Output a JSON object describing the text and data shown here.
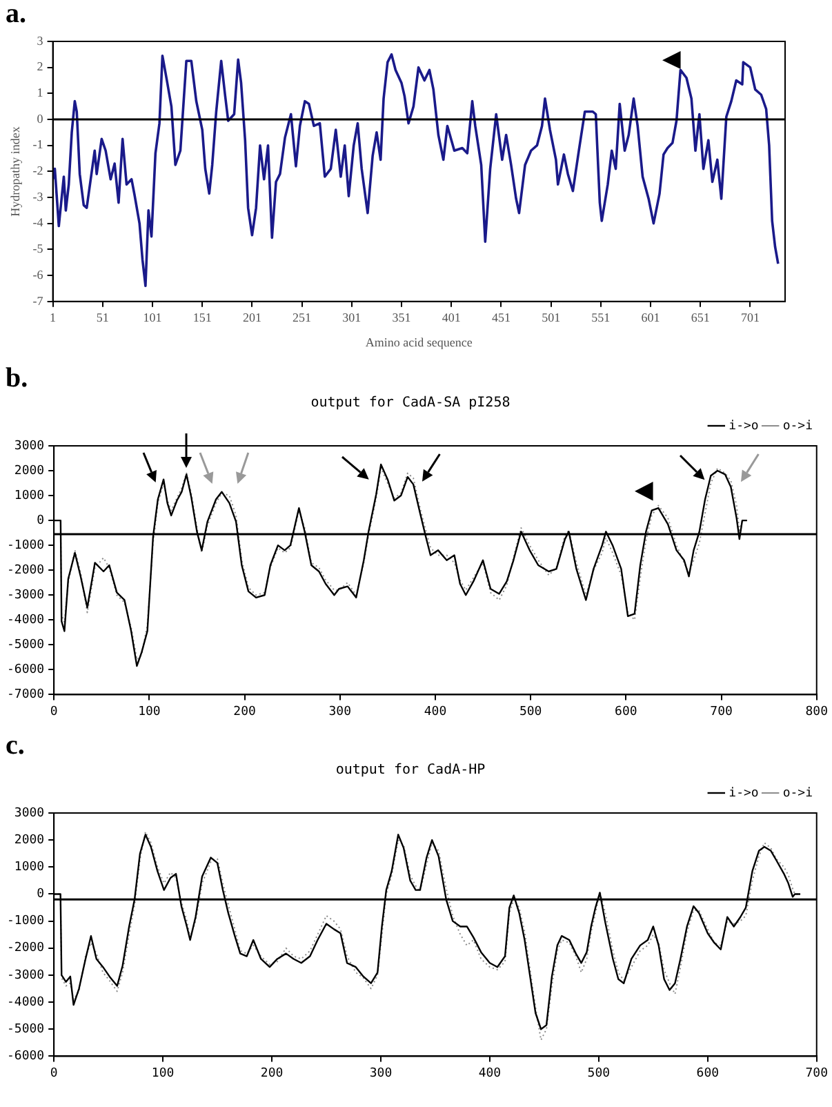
{
  "chart_data": [
    {
      "type": "line",
      "annotations": [
        "a."
      ],
      "xlabel": "Amino acid sequence",
      "ylabel": "Hydropathy index",
      "xlim": [
        1,
        736
      ],
      "xticks": [
        1,
        51,
        101,
        151,
        201,
        251,
        301,
        351,
        401,
        451,
        501,
        551,
        601,
        651,
        701
      ],
      "ylim": [
        -7,
        3
      ],
      "yticks": [
        -7,
        -6,
        -5,
        -4,
        -3,
        -2,
        -1,
        0,
        1,
        2,
        3
      ],
      "grid": false,
      "marker": "none",
      "line_style": "solid",
      "ref_lines": [
        {
          "axis": "y",
          "value": 0,
          "color": "#000000"
        }
      ],
      "series": [
        {
          "color": "#1a1a8a",
          "x": [
            1,
            3,
            7,
            12,
            14,
            17,
            20,
            23,
            25,
            28,
            32,
            35,
            39,
            43,
            45,
            50,
            54,
            59,
            63,
            67,
            71,
            75,
            80,
            83,
            88,
            91,
            94,
            97,
            100,
            104,
            108,
            111,
            115,
            120,
            124,
            129,
            135,
            140,
            145,
            151,
            154,
            158,
            161,
            165,
            170,
            174,
            177,
            183,
            187,
            190,
            194,
            197,
            201,
            205,
            209,
            213,
            217,
            221,
            225,
            229,
            234,
            240,
            245,
            249,
            254,
            258,
            263,
            269,
            274,
            280,
            285,
            290,
            294,
            298,
            303,
            307,
            311,
            317,
            322,
            326,
            330,
            333,
            337,
            341,
            345,
            351,
            354,
            358,
            363,
            368,
            374,
            379,
            383,
            388,
            393,
            397,
            404,
            412,
            417,
            422,
            425,
            431,
            435,
            440,
            446,
            452,
            456,
            461,
            466,
            469,
            475,
            481,
            487,
            492,
            495,
            500,
            506,
            508,
            514,
            518,
            523,
            529,
            535,
            543,
            546,
            550,
            552,
            558,
            562,
            566,
            570,
            575,
            579,
            584,
            588,
            593,
            599,
            604,
            610,
            614,
            618,
            623,
            627,
            631,
            637,
            642,
            646,
            650,
            654,
            659,
            663,
            668,
            672,
            677,
            682,
            687,
            693,
            694,
            701,
            706,
            712,
            717,
            720,
            723,
            726,
            729
          ],
          "values": [
            -2.3,
            -1.9,
            -4.1,
            -2.2,
            -3.5,
            -2.5,
            -0.5,
            0.7,
            0.3,
            -2.1,
            -3.3,
            -3.4,
            -2.3,
            -1.2,
            -2.1,
            -0.75,
            -1.2,
            -2.3,
            -1.7,
            -3.2,
            -0.75,
            -2.5,
            -2.3,
            -2.9,
            -4,
            -5.4,
            -6.4,
            -3.5,
            -4.5,
            -1.3,
            -0.15,
            2.45,
            1.6,
            0.5,
            -1.75,
            -1.2,
            2.25,
            2.25,
            0.7,
            -0.4,
            -1.9,
            -2.85,
            -1.75,
            0.3,
            2.25,
            0.9,
            -0.05,
            0.2,
            2.3,
            1.4,
            -0.8,
            -3.4,
            -4.45,
            -3.4,
            -1,
            -2.3,
            -1,
            -4.55,
            -2.4,
            -2.1,
            -0.7,
            0.2,
            -1.8,
            -0.25,
            0.7,
            0.6,
            -0.25,
            -0.15,
            -2.2,
            -1.9,
            -0.4,
            -2.2,
            -1,
            -2.95,
            -1,
            -0.15,
            -1.9,
            -3.6,
            -1.4,
            -0.5,
            -1.55,
            0.8,
            2.2,
            2.5,
            1.9,
            1.4,
            0.9,
            -0.15,
            0.5,
            2,
            1.5,
            1.9,
            1.15,
            -0.6,
            -1.55,
            -0.25,
            -1.2,
            -1.1,
            -1.3,
            0.7,
            -0.25,
            -1.75,
            -4.7,
            -1.9,
            0.2,
            -1.55,
            -0.6,
            -1.75,
            -3.05,
            -3.6,
            -1.75,
            -1.2,
            -1,
            -0.25,
            0.8,
            -0.4,
            -1.55,
            -2.5,
            -1.35,
            -2.1,
            -2.75,
            -1.2,
            0.3,
            0.3,
            0.2,
            -3.2,
            -3.9,
            -2.5,
            -1.2,
            -1.9,
            0.6,
            -1.2,
            -0.6,
            0.8,
            -0.25,
            -2.2,
            -3.05,
            -4,
            -2.85,
            -1.35,
            -1.1,
            -0.9,
            -0.05,
            1.9,
            1.6,
            0.8,
            -1.2,
            0.2,
            -1.9,
            -0.8,
            -2.4,
            -1.55,
            -3.05,
            0.1,
            0.7,
            1.5,
            1.35,
            2.2,
            2,
            1.15,
            0.95,
            0.4,
            -1,
            -3.9,
            -4.9,
            -5.55
          ]
        }
      ]
    },
    {
      "type": "line",
      "annotations": [
        "b."
      ],
      "title": "output for CadA-SA pI258",
      "xlim": [
        0,
        800
      ],
      "xticks": [
        0,
        100,
        200,
        300,
        400,
        500,
        600,
        700,
        800
      ],
      "ylim": [
        -7000,
        3000
      ],
      "yticks": [
        -7000,
        -6000,
        -5000,
        -4000,
        -3000,
        -2000,
        -1000,
        0,
        1000,
        2000,
        3000
      ],
      "grid": false,
      "legend": "top right",
      "marker": "none",
      "ref_lines": [
        {
          "axis": "y",
          "value": -550,
          "color": "#000000"
        }
      ],
      "series": [
        {
          "name": "i->o",
          "color": "#000000",
          "line_style": "solid",
          "x": [
            0,
            7,
            8,
            11,
            15,
            22,
            28,
            35,
            43,
            52,
            58,
            66,
            74,
            81,
            87,
            92,
            98,
            104,
            109,
            115,
            119,
            123,
            129,
            134,
            139,
            144,
            150,
            155,
            161,
            170,
            176,
            184,
            191,
            197,
            204,
            212,
            221,
            227,
            235,
            242,
            248,
            257,
            263,
            270,
            278,
            285,
            294,
            299,
            308,
            317,
            325,
            330,
            338,
            343,
            350,
            357,
            364,
            371,
            377,
            384,
            390,
            395,
            403,
            412,
            420,
            426,
            432,
            440,
            450,
            458,
            467,
            475,
            482,
            490,
            499,
            508,
            519,
            527,
            536,
            540,
            548,
            558,
            566,
            575,
            579,
            586,
            595,
            602,
            609,
            615,
            621,
            627,
            634,
            644,
            653,
            661,
            666,
            671,
            677,
            683,
            689,
            696,
            704,
            710,
            716,
            719,
            722,
            727
          ],
          "values": [
            0,
            0,
            -4050,
            -4450,
            -2350,
            -1300,
            -2250,
            -3500,
            -1700,
            -2050,
            -1800,
            -2900,
            -3200,
            -4450,
            -5850,
            -5300,
            -4450,
            -650,
            850,
            1650,
            700,
            200,
            800,
            1150,
            1850,
            950,
            -450,
            -1200,
            -50,
            850,
            1150,
            700,
            -50,
            -1800,
            -2850,
            -3100,
            -3000,
            -1800,
            -1000,
            -1200,
            -1000,
            500,
            -450,
            -1800,
            -2050,
            -2550,
            -3000,
            -2750,
            -2650,
            -3100,
            -1600,
            -450,
            1050,
            2250,
            1650,
            800,
            1000,
            1750,
            1450,
            300,
            -650,
            -1400,
            -1200,
            -1600,
            -1400,
            -2550,
            -3000,
            -2450,
            -1600,
            -2750,
            -2950,
            -2450,
            -1600,
            -450,
            -1200,
            -1800,
            -2050,
            -1950,
            -750,
            -450,
            -1950,
            -3200,
            -1950,
            -1000,
            -450,
            -1000,
            -1950,
            -3850,
            -3750,
            -1800,
            -450,
            400,
            500,
            -150,
            -1200,
            -1600,
            -2250,
            -1200,
            -450,
            850,
            1800,
            2000,
            1850,
            1350,
            100,
            -750,
            0,
            0
          ]
        },
        {
          "name": "o->i",
          "color": "#8c8c8c",
          "line_style": "dotted",
          "x": [
            0,
            7,
            8,
            11,
            15,
            22,
            28,
            35,
            43,
            52,
            58,
            66,
            74,
            81,
            87,
            92,
            98,
            104,
            109,
            115,
            119,
            123,
            129,
            134,
            139,
            144,
            150,
            155,
            161,
            170,
            176,
            184,
            191,
            197,
            204,
            212,
            221,
            227,
            235,
            242,
            248,
            257,
            263,
            270,
            278,
            285,
            294,
            299,
            308,
            317,
            325,
            330,
            338,
            343,
            350,
            357,
            364,
            371,
            377,
            384,
            390,
            395,
            403,
            412,
            420,
            426,
            432,
            440,
            450,
            458,
            467,
            475,
            482,
            490,
            499,
            508,
            519,
            527,
            536,
            540,
            548,
            558,
            566,
            575,
            579,
            586,
            595,
            602,
            609,
            615,
            621,
            627,
            634,
            644,
            653,
            661,
            666,
            671,
            677,
            683,
            689,
            696,
            704,
            710,
            716,
            719,
            722,
            727
          ],
          "values": [
            0,
            0,
            -3800,
            -4100,
            -2500,
            -1200,
            -2100,
            -3700,
            -1900,
            -1500,
            -1900,
            -3000,
            -3300,
            -4300,
            -5600,
            -5400,
            -4200,
            -900,
            700,
            1500,
            800,
            400,
            900,
            1300,
            1900,
            1100,
            -300,
            -1300,
            -200,
            700,
            1100,
            1000,
            200,
            -1600,
            -2700,
            -3000,
            -2900,
            -1900,
            -1100,
            -1300,
            -1100,
            400,
            -300,
            -1700,
            -1900,
            -2400,
            -2800,
            -2800,
            -2500,
            -3000,
            -1700,
            -600,
            900,
            2100,
            1500,
            900,
            1100,
            1900,
            1700,
            500,
            -400,
            -1100,
            -1400,
            -1400,
            -1700,
            -2400,
            -2800,
            -2300,
            -1700,
            -2900,
            -3200,
            -2600,
            -1500,
            -300,
            -1000,
            -1600,
            -2200,
            -1900,
            -600,
            -400,
            -1700,
            -3000,
            -2000,
            -1300,
            -700,
            -1300,
            -2200,
            -3700,
            -4000,
            -2300,
            -800,
            200,
            600,
            100,
            -1000,
            -1700,
            -2100,
            -1600,
            -900,
            300,
            1500,
            2100,
            1900,
            1600,
            600,
            -400,
            0,
            0
          ]
        }
      ]
    },
    {
      "type": "line",
      "annotations": [
        "c."
      ],
      "title": "output for CadA-HP",
      "xlim": [
        0,
        700
      ],
      "xticks": [
        0,
        100,
        200,
        300,
        400,
        500,
        600,
        700
      ],
      "ylim": [
        -6000,
        3000
      ],
      "yticks": [
        -6000,
        -5000,
        -4000,
        -3000,
        -2000,
        -1000,
        0,
        1000,
        2000,
        3000
      ],
      "grid": false,
      "legend": "top right",
      "marker": "none",
      "ref_lines": [
        {
          "axis": "y",
          "value": -200,
          "color": "#000000"
        }
      ],
      "series": [
        {
          "name": "i->o",
          "color": "#000000",
          "line_style": "solid",
          "x": [
            0,
            6,
            7,
            11,
            15,
            18,
            23,
            29,
            34,
            39,
            45,
            51,
            58,
            63,
            69,
            74,
            79,
            84,
            89,
            95,
            101,
            107,
            112,
            117,
            122,
            125,
            130,
            136,
            144,
            150,
            155,
            160,
            166,
            171,
            177,
            183,
            190,
            198,
            205,
            213,
            220,
            227,
            235,
            242,
            250,
            257,
            263,
            269,
            277,
            284,
            291,
            297,
            301,
            305,
            310,
            316,
            321,
            327,
            332,
            336,
            342,
            347,
            353,
            360,
            366,
            373,
            379,
            385,
            392,
            400,
            407,
            414,
            418,
            422,
            427,
            432,
            437,
            442,
            447,
            452,
            457,
            462,
            466,
            473,
            479,
            484,
            489,
            493,
            497,
            501,
            506,
            513,
            518,
            523,
            530,
            538,
            545,
            550,
            555,
            560,
            565,
            570,
            575,
            581,
            587,
            592,
            600,
            606,
            612,
            618,
            624,
            630,
            635,
            641,
            647,
            652,
            658,
            663,
            670,
            674,
            678,
            680,
            685
          ],
          "values": [
            0,
            0,
            -3000,
            -3250,
            -3050,
            -4100,
            -3500,
            -2400,
            -1550,
            -2400,
            -2700,
            -3050,
            -3400,
            -2650,
            -1200,
            -200,
            1500,
            2200,
            1750,
            850,
            150,
            600,
            750,
            -450,
            -1200,
            -1700,
            -850,
            650,
            1350,
            1150,
            150,
            -700,
            -1550,
            -2200,
            -2300,
            -1700,
            -2400,
            -2700,
            -2400,
            -2200,
            -2400,
            -2550,
            -2300,
            -1700,
            -1100,
            -1300,
            -1450,
            -2550,
            -2700,
            -3050,
            -3300,
            -2900,
            -1200,
            150,
            850,
            2200,
            1700,
            500,
            150,
            150,
            1350,
            2000,
            1400,
            -200,
            -1000,
            -1200,
            -1200,
            -1600,
            -2150,
            -2550,
            -2700,
            -2300,
            -500,
            -50,
            -700,
            -1700,
            -3050,
            -4400,
            -5000,
            -4850,
            -3050,
            -1900,
            -1550,
            -1700,
            -2200,
            -2550,
            -2150,
            -1200,
            -500,
            50,
            -1050,
            -2400,
            -3150,
            -3300,
            -2400,
            -1900,
            -1700,
            -1200,
            -1900,
            -3150,
            -3550,
            -3300,
            -2400,
            -1200,
            -450,
            -700,
            -1450,
            -1800,
            -2050,
            -850,
            -1200,
            -850,
            -500,
            850,
            1600,
            1750,
            1600,
            1250,
            750,
            400,
            -100,
            0,
            0
          ]
        },
        {
          "name": "o->i",
          "color": "#8c8c8c",
          "line_style": "dotted",
          "x": [
            0,
            6,
            7,
            11,
            15,
            18,
            23,
            29,
            34,
            39,
            45,
            51,
            58,
            63,
            69,
            74,
            79,
            84,
            89,
            95,
            101,
            107,
            112,
            117,
            122,
            125,
            130,
            136,
            144,
            150,
            155,
            160,
            166,
            171,
            177,
            183,
            190,
            198,
            205,
            213,
            220,
            227,
            235,
            242,
            250,
            257,
            263,
            269,
            277,
            284,
            291,
            297,
            301,
            305,
            310,
            316,
            321,
            327,
            332,
            336,
            342,
            347,
            353,
            360,
            366,
            373,
            379,
            385,
            392,
            400,
            407,
            414,
            418,
            422,
            427,
            432,
            437,
            442,
            447,
            452,
            457,
            462,
            466,
            473,
            479,
            484,
            489,
            493,
            497,
            501,
            506,
            513,
            518,
            523,
            530,
            538,
            545,
            550,
            555,
            560,
            565,
            570,
            575,
            581,
            587,
            592,
            600,
            606,
            612,
            618,
            624,
            630,
            635,
            641,
            647,
            652,
            658,
            663,
            670,
            674,
            678,
            680,
            685
          ],
          "values": [
            0,
            0,
            -3100,
            -3400,
            -3300,
            -3900,
            -3600,
            -2300,
            -1800,
            -2200,
            -2900,
            -3200,
            -3600,
            -2900,
            -1500,
            -400,
            1300,
            2300,
            1900,
            1000,
            400,
            800,
            600,
            -300,
            -1000,
            -1600,
            -1000,
            400,
            1200,
            1300,
            400,
            -400,
            -1300,
            -2100,
            -2200,
            -1900,
            -2300,
            -2600,
            -2500,
            -2000,
            -2300,
            -2400,
            -2100,
            -1500,
            -800,
            -1000,
            -1300,
            -2300,
            -2900,
            -3100,
            -3500,
            -3000,
            -1500,
            0,
            700,
            2000,
            1800,
            700,
            300,
            100,
            1100,
            1900,
            1600,
            200,
            -800,
            -1500,
            -1900,
            -1700,
            -2400,
            -2700,
            -2800,
            -2500,
            -700,
            -200,
            -500,
            -1400,
            -2800,
            -4200,
            -5400,
            -5000,
            -3400,
            -2100,
            -1700,
            -1800,
            -2300,
            -2900,
            -2400,
            -1400,
            -700,
            100,
            -700,
            -2100,
            -2900,
            -3200,
            -2700,
            -2100,
            -1900,
            -1500,
            -1800,
            -2800,
            -3300,
            -3700,
            -2700,
            -1400,
            -600,
            -600,
            -1300,
            -1800,
            -1900,
            -1000,
            -1100,
            -1000,
            -800,
            500,
            1400,
            1900,
            1700,
            1300,
            1000,
            700,
            200,
            0,
            0
          ]
        }
      ]
    }
  ]
}
